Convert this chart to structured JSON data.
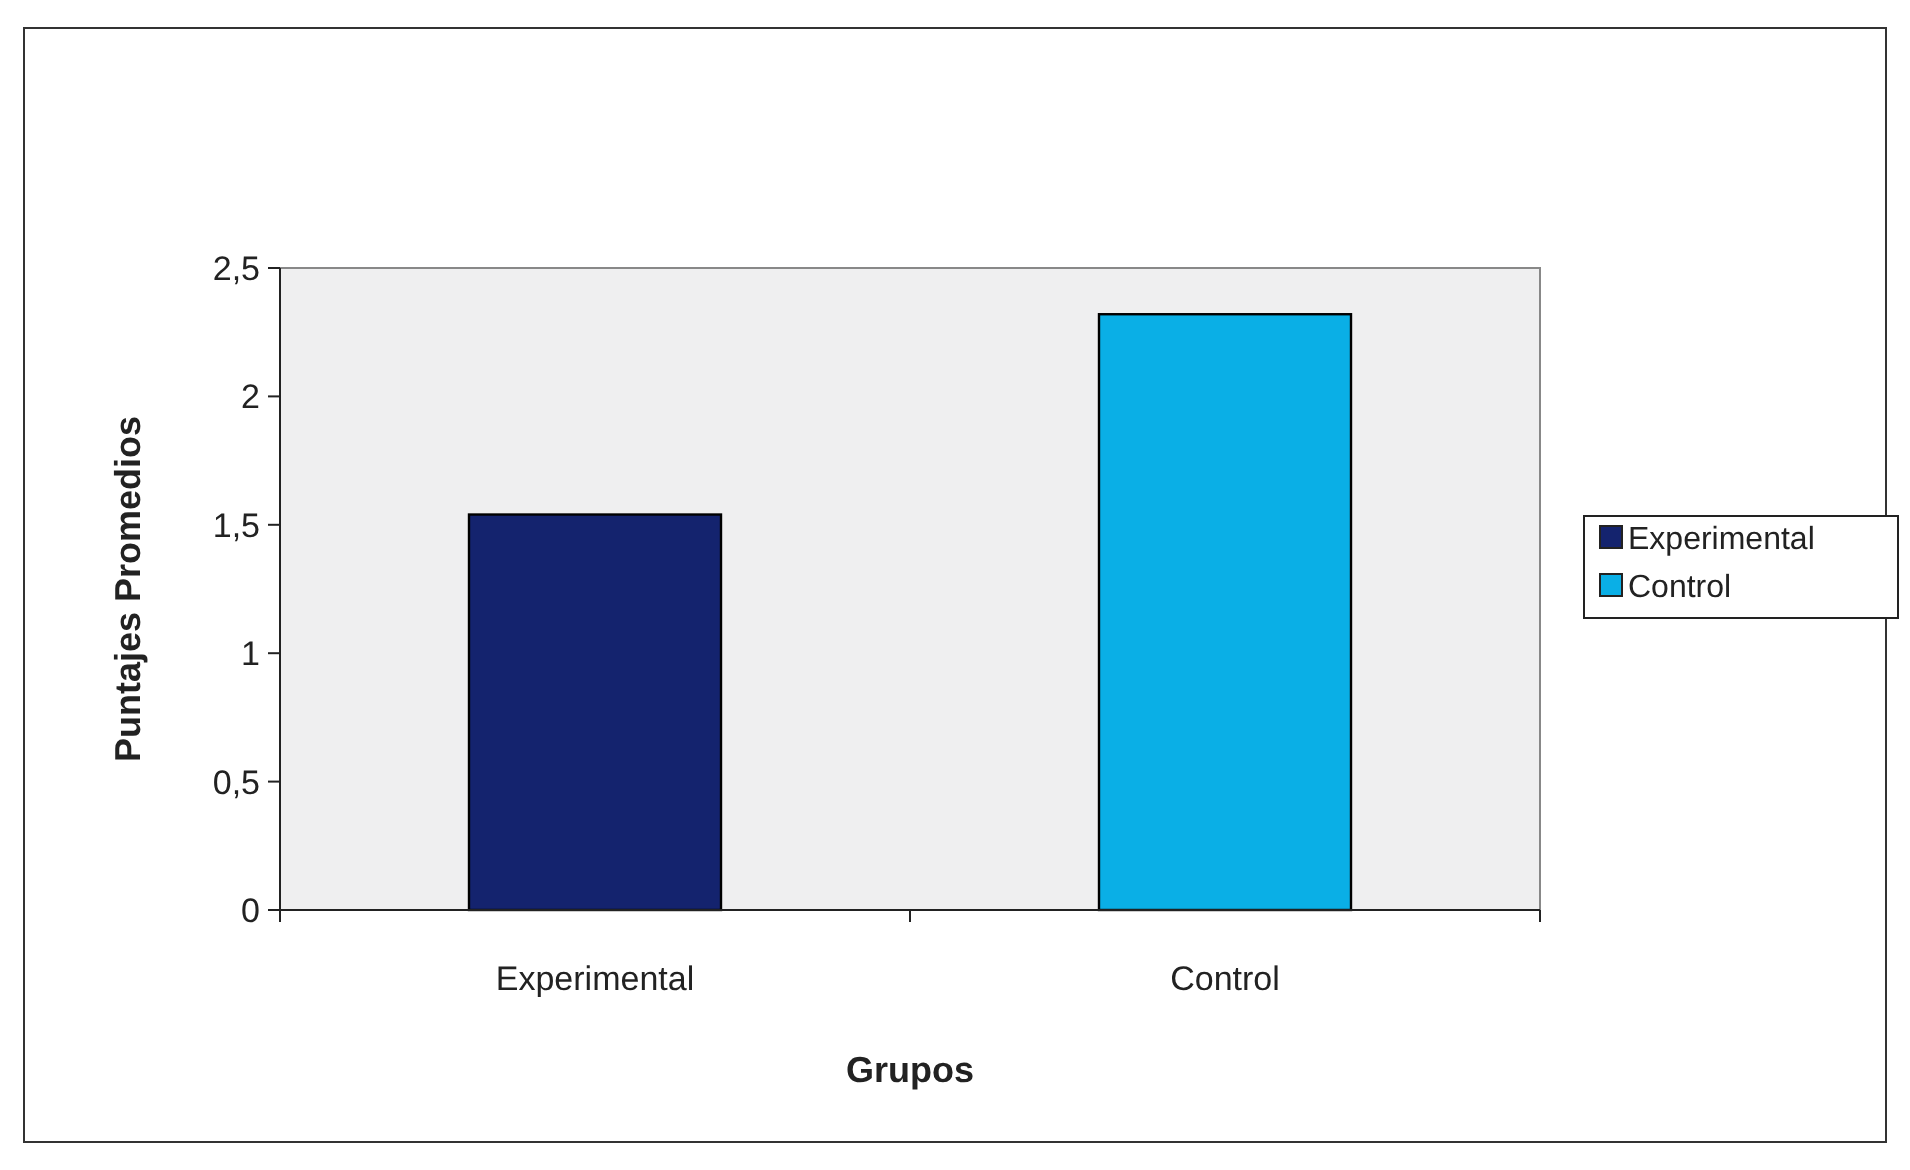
{
  "chart_data": {
    "type": "bar",
    "xlabel": "Grupos",
    "ylabel": "Puntajes Promedios",
    "categories": [
      "Experimental",
      "Control"
    ],
    "series": [
      {
        "name": "Experimental",
        "color": "#14236e",
        "values": [
          1.54,
          null
        ]
      },
      {
        "name": "Control",
        "color": "#0aafe6",
        "values": [
          null,
          2.32
        ]
      }
    ],
    "ylim": [
      0,
      2.5
    ],
    "yticks": [
      0,
      {
        "value": 0.5,
        "label": "0,5"
      },
      1,
      {
        "value": 1.5,
        "label": "1,5"
      },
      2,
      {
        "value": 2.5,
        "label": "2,5"
      }
    ],
    "grid": false,
    "legend": "right"
  }
}
